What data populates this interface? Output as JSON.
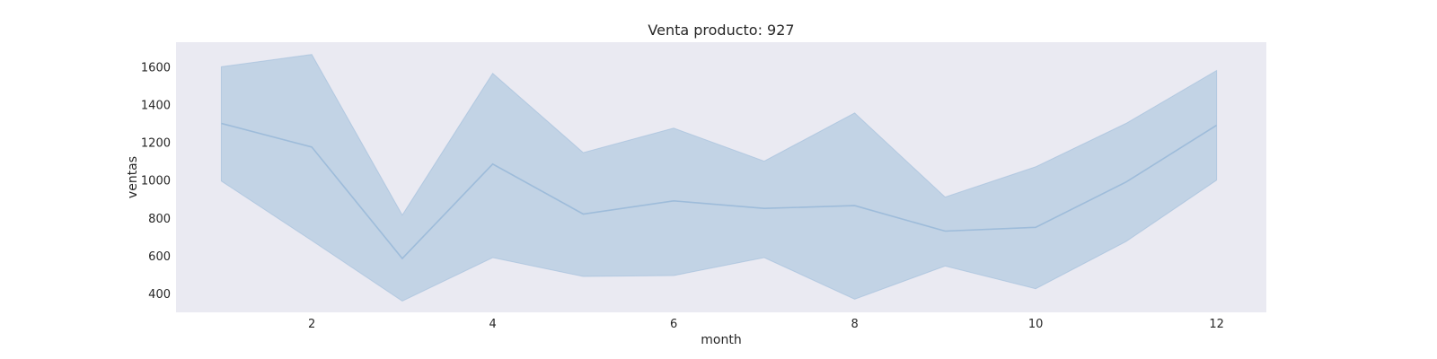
{
  "chart_data": {
    "type": "area",
    "title": "Venta producto: 927",
    "xlabel": "month",
    "ylabel": "ventas",
    "xlim": [
      0.5,
      12.55
    ],
    "ylim": [
      300,
      1730
    ],
    "xticks": [
      2,
      4,
      6,
      8,
      10,
      12
    ],
    "yticks": [
      400,
      600,
      800,
      1000,
      1200,
      1400,
      1600
    ],
    "grid": false,
    "legend": "none",
    "x": [
      1,
      2,
      3,
      4,
      5,
      6,
      7,
      8,
      9,
      10,
      11,
      12
    ],
    "series": [
      {
        "mean": [
          1300,
          1175,
          585,
          1085,
          820,
          890,
          850,
          865,
          730,
          750,
          990,
          1290
        ],
        "upper": [
          1600,
          1665,
          815,
          1565,
          1145,
          1275,
          1100,
          1355,
          910,
          1070,
          1300,
          1580
        ],
        "lower": [
          995,
          680,
          360,
          590,
          490,
          495,
          590,
          370,
          545,
          425,
          675,
          1000
        ],
        "line_color": "#9ebcda",
        "band_color": "#c2d3e5"
      }
    ],
    "colors": {
      "plot_background": "#eaeaf2",
      "page_background": "#ffffff",
      "text": "#262626"
    }
  }
}
